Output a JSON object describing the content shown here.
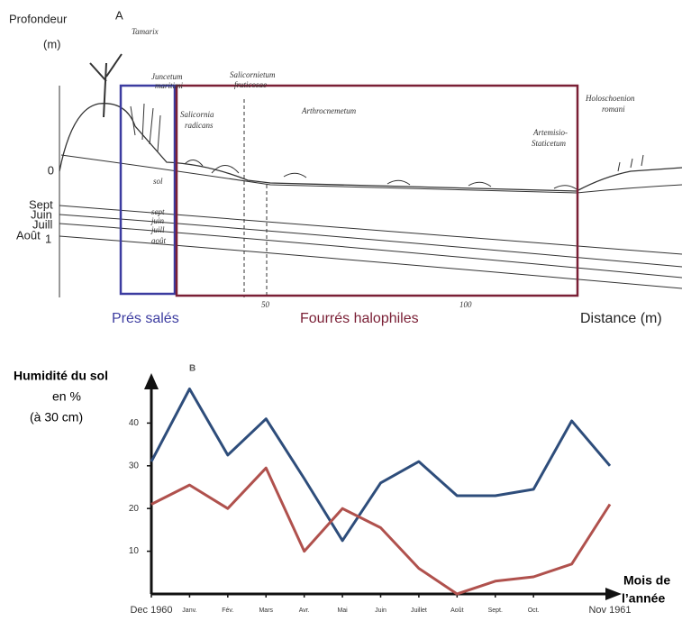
{
  "diagram": {
    "panel_label": "A",
    "depth_label": "Profondeur",
    "depth_unit": "(m)",
    "depth_ticks": [
      "0",
      "Sept",
      "Juin",
      "Juill",
      "Août",
      "1"
    ],
    "species": [
      "Tamarix",
      "Juncetum",
      "maritimi",
      "Salicornietum",
      "fruticosae",
      "Salicornia",
      "radicans",
      "Arthrocnemetum",
      "Artemisio-",
      "Staticetum",
      "Holoschoenion",
      "romani"
    ],
    "profile_labels": [
      "sol",
      "sept",
      "juin",
      "juill",
      "août"
    ],
    "distance_ticks": [
      "50",
      "100"
    ],
    "zones": [
      "Prés salés",
      "Fourrés halophiles"
    ],
    "distance_label": "Distance (m)"
  },
  "chart_data": {
    "type": "line",
    "panel_label": "B",
    "y_label": [
      "Humidité du sol",
      "en %",
      "(à 30 cm)"
    ],
    "x_label": [
      "Mois de",
      "l’année"
    ],
    "categories": [
      "Dec 1960",
      "Janv.",
      "Fév.",
      "Mars",
      "Avr.",
      "Mai",
      "Juin",
      "Juillet",
      "Août",
      "Sept.",
      "Oct.",
      null,
      "Nov 1961"
    ],
    "series": [
      {
        "color": "#2e4d7b",
        "values": [
          31,
          48,
          32.5,
          41,
          27,
          12.5,
          26,
          31,
          23,
          23,
          24.5,
          40.5,
          30
        ]
      },
      {
        "color": "#b0514d",
        "values": [
          21,
          25.5,
          20,
          29.5,
          10,
          20,
          15.5,
          6,
          0,
          3,
          4,
          7,
          21
        ]
      }
    ],
    "ylim": [
      0,
      50
    ],
    "yticks": [
      10,
      20,
      30,
      40
    ]
  }
}
